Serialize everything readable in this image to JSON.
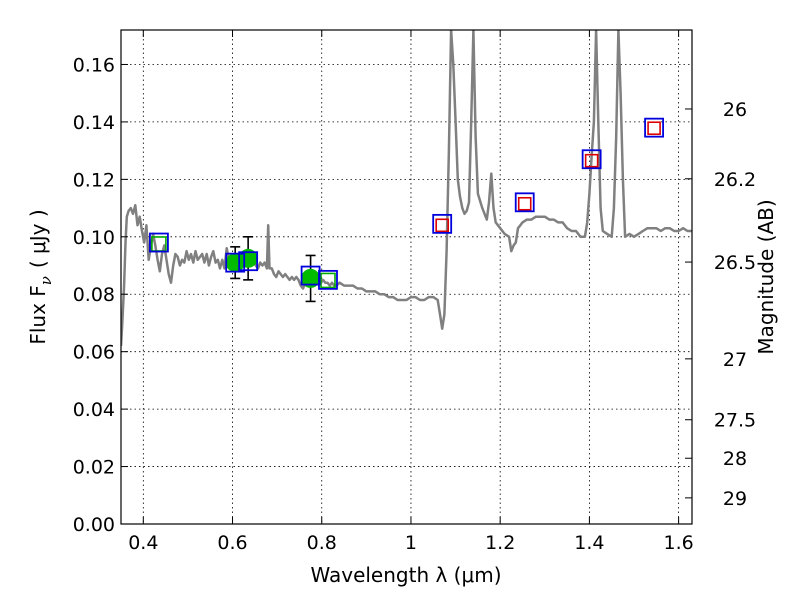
{
  "chart_data": {
    "type": "scatter",
    "xlabel": "Wavelength  λ (μm)",
    "ylabel": "Flux  F",
    "ylabel_subscript": "ν",
    "ylabel_unit": "( μJy )",
    "y2label": "Magnitude (AB)",
    "xlim": [
      0.35,
      1.63
    ],
    "ylim": [
      0.0,
      0.172
    ],
    "grid": true,
    "xticks": [
      0.4,
      0.6,
      0.8,
      1.0,
      1.2,
      1.4,
      1.6
    ],
    "xtick_labels": [
      "0.4",
      "0.6",
      "0.8",
      "1",
      "1.2",
      "1.4",
      "1.6"
    ],
    "yticks": [
      0.0,
      0.02,
      0.04,
      0.06,
      0.08,
      0.1,
      0.12,
      0.14,
      0.16
    ],
    "ytick_labels": [
      "0.00",
      "0.02",
      "0.04",
      "0.06",
      "0.08",
      "0.10",
      "0.12",
      "0.14",
      "0.16"
    ],
    "y2ticks": [
      {
        "label": "26",
        "flux": 0.1445
      },
      {
        "label": "26.2",
        "flux": 0.1202
      },
      {
        "label": "26.5",
        "flux": 0.0912
      },
      {
        "label": "27",
        "flux": 0.0575
      },
      {
        "label": "27.5",
        "flux": 0.0363
      },
      {
        "label": "28",
        "flux": 0.0229
      },
      {
        "label": "29",
        "flux": 0.0091
      }
    ],
    "colors": {
      "sed_line": "#808080",
      "observed_points": "#00bb00",
      "model_blue": "#0000dd",
      "model_red": "#dd0000",
      "model_green": "#00aa00"
    },
    "observed_points": [
      {
        "x": 0.606,
        "y": 0.091,
        "err": 0.0055
      },
      {
        "x": 0.635,
        "y": 0.0925,
        "err": 0.0075
      },
      {
        "x": 0.775,
        "y": 0.0855,
        "err": 0.008
      }
    ],
    "model_points_blue": [
      {
        "x": 0.435,
        "y": 0.098
      },
      {
        "x": 0.606,
        "y": 0.091
      },
      {
        "x": 0.635,
        "y": 0.0915
      },
      {
        "x": 0.775,
        "y": 0.0865
      },
      {
        "x": 0.814,
        "y": 0.085
      },
      {
        "x": 1.07,
        "y": 0.1045
      },
      {
        "x": 1.255,
        "y": 0.112
      },
      {
        "x": 1.405,
        "y": 0.127
      },
      {
        "x": 1.545,
        "y": 0.138
      }
    ],
    "model_points_red": [
      {
        "x": 1.07,
        "y": 0.104
      },
      {
        "x": 1.255,
        "y": 0.1115
      },
      {
        "x": 1.405,
        "y": 0.1265
      },
      {
        "x": 1.545,
        "y": 0.1378
      }
    ],
    "model_points_green": [
      {
        "x": 0.435,
        "y": 0.0975
      },
      {
        "x": 0.814,
        "y": 0.0848
      }
    ],
    "sed_line": [
      [
        0.35,
        0.062
      ],
      [
        0.353,
        0.07
      ],
      [
        0.357,
        0.083
      ],
      [
        0.36,
        0.098
      ],
      [
        0.363,
        0.107
      ],
      [
        0.367,
        0.109
      ],
      [
        0.372,
        0.11
      ],
      [
        0.377,
        0.108
      ],
      [
        0.382,
        0.111
      ],
      [
        0.387,
        0.104
      ],
      [
        0.392,
        0.107
      ],
      [
        0.397,
        0.102
      ],
      [
        0.402,
        0.098
      ],
      [
        0.407,
        0.104
      ],
      [
        0.412,
        0.092
      ],
      [
        0.417,
        0.097
      ],
      [
        0.422,
        0.101
      ],
      [
        0.427,
        0.097
      ],
      [
        0.432,
        0.092
      ],
      [
        0.437,
        0.088
      ],
      [
        0.442,
        0.094
      ],
      [
        0.447,
        0.097
      ],
      [
        0.452,
        0.092
      ],
      [
        0.457,
        0.087
      ],
      [
        0.462,
        0.084
      ],
      [
        0.467,
        0.09
      ],
      [
        0.472,
        0.094
      ],
      [
        0.477,
        0.093
      ],
      [
        0.482,
        0.09
      ],
      [
        0.487,
        0.092
      ],
      [
        0.492,
        0.091
      ],
      [
        0.497,
        0.095
      ],
      [
        0.502,
        0.092
      ],
      [
        0.507,
        0.094
      ],
      [
        0.512,
        0.091
      ],
      [
        0.517,
        0.095
      ],
      [
        0.522,
        0.092
      ],
      [
        0.527,
        0.093
      ],
      [
        0.532,
        0.094
      ],
      [
        0.537,
        0.091
      ],
      [
        0.542,
        0.094
      ],
      [
        0.547,
        0.09
      ],
      [
        0.552,
        0.093
      ],
      [
        0.557,
        0.095
      ],
      [
        0.562,
        0.091
      ],
      [
        0.567,
        0.092
      ],
      [
        0.572,
        0.089
      ],
      [
        0.577,
        0.092
      ],
      [
        0.582,
        0.089
      ],
      [
        0.587,
        0.096
      ],
      [
        0.592,
        0.092
      ],
      [
        0.597,
        0.091
      ],
      [
        0.602,
        0.09
      ],
      [
        0.607,
        0.093
      ],
      [
        0.612,
        0.091
      ],
      [
        0.617,
        0.093
      ],
      [
        0.622,
        0.092
      ],
      [
        0.627,
        0.094
      ],
      [
        0.632,
        0.092
      ],
      [
        0.637,
        0.093
      ],
      [
        0.642,
        0.091
      ],
      [
        0.647,
        0.092
      ],
      [
        0.652,
        0.09
      ],
      [
        0.657,
        0.089
      ],
      [
        0.662,
        0.091
      ],
      [
        0.667,
        0.09
      ],
      [
        0.672,
        0.091
      ],
      [
        0.677,
        0.089
      ],
      [
        0.68,
        0.104
      ],
      [
        0.683,
        0.089
      ],
      [
        0.688,
        0.089
      ],
      [
        0.693,
        0.087
      ],
      [
        0.698,
        0.086
      ],
      [
        0.703,
        0.088
      ],
      [
        0.708,
        0.087
      ],
      [
        0.713,
        0.086
      ],
      [
        0.718,
        0.087
      ],
      [
        0.723,
        0.086
      ],
      [
        0.728,
        0.085
      ],
      [
        0.733,
        0.086
      ],
      [
        0.738,
        0.085
      ],
      [
        0.743,
        0.086
      ],
      [
        0.748,
        0.085
      ],
      [
        0.753,
        0.083
      ],
      [
        0.758,
        0.082
      ],
      [
        0.763,
        0.084
      ],
      [
        0.768,
        0.085
      ],
      [
        0.773,
        0.084
      ],
      [
        0.778,
        0.085
      ],
      [
        0.783,
        0.086
      ],
      [
        0.788,
        0.084
      ],
      [
        0.793,
        0.085
      ],
      [
        0.798,
        0.084
      ],
      [
        0.803,
        0.085
      ],
      [
        0.808,
        0.084
      ],
      [
        0.813,
        0.084
      ],
      [
        0.818,
        0.083
      ],
      [
        0.823,
        0.084
      ],
      [
        0.828,
        0.083
      ],
      [
        0.833,
        0.083
      ],
      [
        0.84,
        0.084
      ],
      [
        0.85,
        0.083
      ],
      [
        0.86,
        0.083
      ],
      [
        0.87,
        0.083
      ],
      [
        0.88,
        0.082
      ],
      [
        0.89,
        0.082
      ],
      [
        0.9,
        0.081
      ],
      [
        0.91,
        0.081
      ],
      [
        0.92,
        0.081
      ],
      [
        0.93,
        0.08
      ],
      [
        0.94,
        0.08
      ],
      [
        0.95,
        0.079
      ],
      [
        0.96,
        0.079
      ],
      [
        0.97,
        0.078
      ],
      [
        0.98,
        0.078
      ],
      [
        0.99,
        0.078
      ],
      [
        1.0,
        0.079
      ],
      [
        1.01,
        0.079
      ],
      [
        1.02,
        0.078
      ],
      [
        1.03,
        0.078
      ],
      [
        1.04,
        0.079
      ],
      [
        1.05,
        0.079
      ],
      [
        1.06,
        0.078
      ],
      [
        1.065,
        0.073
      ],
      [
        1.07,
        0.068
      ],
      [
        1.075,
        0.073
      ],
      [
        1.08,
        0.095
      ],
      [
        1.085,
        0.13
      ],
      [
        1.09,
        0.172
      ],
      [
        1.095,
        0.16
      ],
      [
        1.1,
        0.14
      ],
      [
        1.105,
        0.12
      ],
      [
        1.11,
        0.114
      ],
      [
        1.115,
        0.11
      ],
      [
        1.12,
        0.108
      ],
      [
        1.125,
        0.109
      ],
      [
        1.13,
        0.112
      ],
      [
        1.135,
        0.14
      ],
      [
        1.14,
        0.172
      ],
      [
        1.145,
        0.135
      ],
      [
        1.15,
        0.115
      ],
      [
        1.16,
        0.11
      ],
      [
        1.17,
        0.106
      ],
      [
        1.175,
        0.112
      ],
      [
        1.18,
        0.122
      ],
      [
        1.185,
        0.11
      ],
      [
        1.19,
        0.105
      ],
      [
        1.2,
        0.103
      ],
      [
        1.21,
        0.101
      ],
      [
        1.22,
        0.1
      ],
      [
        1.225,
        0.095
      ],
      [
        1.23,
        0.097
      ],
      [
        1.235,
        0.098
      ],
      [
        1.24,
        0.103
      ],
      [
        1.245,
        0.104
      ],
      [
        1.25,
        0.105
      ],
      [
        1.26,
        0.106
      ],
      [
        1.27,
        0.106
      ],
      [
        1.28,
        0.107
      ],
      [
        1.29,
        0.107
      ],
      [
        1.3,
        0.107
      ],
      [
        1.31,
        0.106
      ],
      [
        1.32,
        0.106
      ],
      [
        1.33,
        0.105
      ],
      [
        1.34,
        0.105
      ],
      [
        1.35,
        0.103
      ],
      [
        1.36,
        0.102
      ],
      [
        1.37,
        0.102
      ],
      [
        1.38,
        0.1
      ],
      [
        1.39,
        0.1
      ],
      [
        1.395,
        0.105
      ],
      [
        1.4,
        0.115
      ],
      [
        1.405,
        0.128
      ],
      [
        1.41,
        0.14
      ],
      [
        1.415,
        0.172
      ],
      [
        1.42,
        0.14
      ],
      [
        1.425,
        0.11
      ],
      [
        1.43,
        0.102
      ],
      [
        1.44,
        0.101
      ],
      [
        1.45,
        0.1
      ],
      [
        1.455,
        0.11
      ],
      [
        1.46,
        0.135
      ],
      [
        1.465,
        0.172
      ],
      [
        1.47,
        0.15
      ],
      [
        1.475,
        0.12
      ],
      [
        1.48,
        0.1
      ],
      [
        1.49,
        0.101
      ],
      [
        1.5,
        0.1
      ],
      [
        1.51,
        0.101
      ],
      [
        1.52,
        0.102
      ],
      [
        1.53,
        0.103
      ],
      [
        1.54,
        0.103
      ],
      [
        1.55,
        0.103
      ],
      [
        1.56,
        0.102
      ],
      [
        1.57,
        0.103
      ],
      [
        1.58,
        0.103
      ],
      [
        1.59,
        0.102
      ],
      [
        1.6,
        0.102
      ],
      [
        1.61,
        0.103
      ],
      [
        1.62,
        0.102
      ],
      [
        1.63,
        0.102
      ]
    ]
  }
}
